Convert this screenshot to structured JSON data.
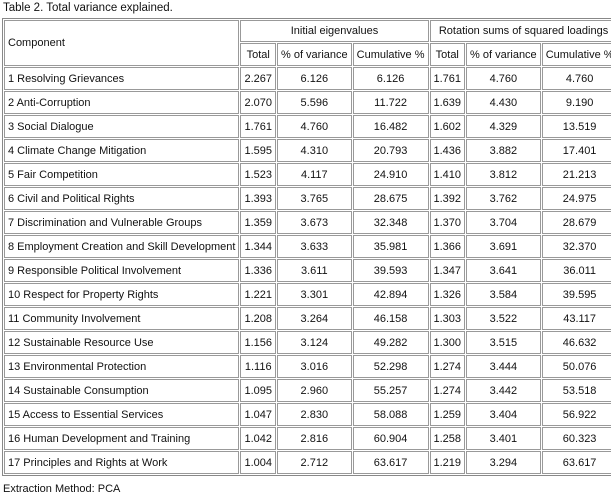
{
  "caption": "Table 2. Total variance explained.",
  "table": {
    "header": {
      "component": "Component",
      "groups": [
        "Initial eigenvalues",
        "Rotation sums of squared loadings"
      ],
      "columns": [
        "Total",
        "% of variance",
        "Cumulative %",
        "Total",
        "% of variance",
        "Cumulative %"
      ]
    },
    "rows": [
      [
        "1 Resolving Grievances",
        "2.267",
        "6.126",
        "6.126",
        "1.761",
        "4.760",
        "4.760"
      ],
      [
        "2 Anti-Corruption",
        "2.070",
        "5.596",
        "11.722",
        "1.639",
        "4.430",
        "9.190"
      ],
      [
        "3 Social Dialogue",
        "1.761",
        "4.760",
        "16.482",
        "1.602",
        "4.329",
        "13.519"
      ],
      [
        "4 Climate Change Mitigation",
        "1.595",
        "4.310",
        "20.793",
        "1.436",
        "3.882",
        "17.401"
      ],
      [
        "5 Fair Competition",
        "1.523",
        "4.117",
        "24.910",
        "1.410",
        "3.812",
        "21.213"
      ],
      [
        "6 Civil and Political Rights",
        "1.393",
        "3.765",
        "28.675",
        "1.392",
        "3.762",
        "24.975"
      ],
      [
        "7 Discrimination and Vulnerable Groups",
        "1.359",
        "3.673",
        "32.348",
        "1.370",
        "3.704",
        "28.679"
      ],
      [
        "8 Employment Creation and Skill Development",
        "1.344",
        "3.633",
        "35.981",
        "1.366",
        "3.691",
        "32.370"
      ],
      [
        "9 Responsible Political Involvement",
        "1.336",
        "3.611",
        "39.593",
        "1.347",
        "3.641",
        "36.011"
      ],
      [
        "10 Respect for Property Rights",
        "1.221",
        "3.301",
        "42.894",
        "1.326",
        "3.584",
        "39.595"
      ],
      [
        "11 Community Involvement",
        "1.208",
        "3.264",
        "46.158",
        "1.303",
        "3.522",
        "43.117"
      ],
      [
        "12 Sustainable Resource Use",
        "1.156",
        "3.124",
        "49.282",
        "1.300",
        "3.515",
        "46.632"
      ],
      [
        "13 Environmental Protection",
        "1.116",
        "3.016",
        "52.298",
        "1.274",
        "3.444",
        "50.076"
      ],
      [
        "14 Sustainable Consumption",
        "1.095",
        "2.960",
        "55.257",
        "1.274",
        "3.442",
        "53.518"
      ],
      [
        "15 Access to Essential Services",
        "1.047",
        "2.830",
        "58.088",
        "1.259",
        "3.404",
        "56.922"
      ],
      [
        "16 Human Development and Training",
        "1.042",
        "2.816",
        "60.904",
        "1.258",
        "3.401",
        "60.323"
      ],
      [
        "17 Principles and Rights at Work",
        "1.004",
        "2.712",
        "63.617",
        "1.219",
        "3.294",
        "63.617"
      ]
    ]
  },
  "footnote": "Extraction Method: PCA"
}
